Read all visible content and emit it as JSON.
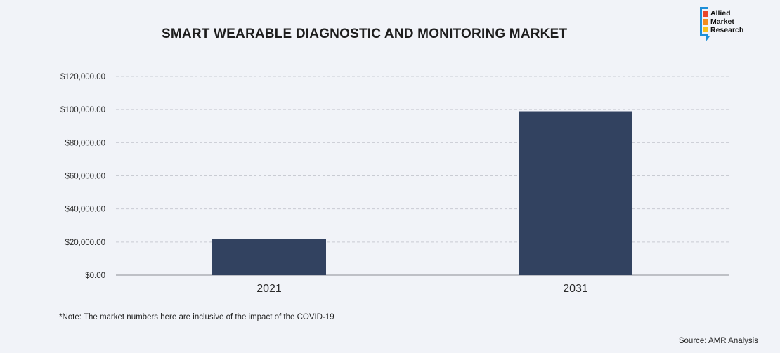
{
  "logo": {
    "line1": "Allied",
    "line2": "Market",
    "line3": "Research"
  },
  "note": "*Note: The market numbers here are inclusive of the impact of the COVID-19",
  "source": "Source: AMR Analysis",
  "colors": {
    "bar": "#324260",
    "background": "#f1f3f8",
    "grid": "#c9ccd3"
  },
  "chart_data": {
    "type": "bar",
    "title": "SMART WEARABLE DIAGNOSTIC AND MONITORING MARKET",
    "categories": [
      "2021",
      "2031"
    ],
    "values": [
      22000,
      99000
    ],
    "ylim": [
      0,
      120000
    ],
    "yticks": [
      0,
      20000,
      40000,
      60000,
      80000,
      100000,
      120000
    ],
    "ytick_labels": [
      "$0.00",
      "$20,000.00",
      "$40,000.00",
      "$60,000.00",
      "$80,000.00",
      "$100,000.00",
      "$120,000.00"
    ],
    "xlabel": "",
    "ylabel": "",
    "grid": true,
    "legend": "none"
  }
}
